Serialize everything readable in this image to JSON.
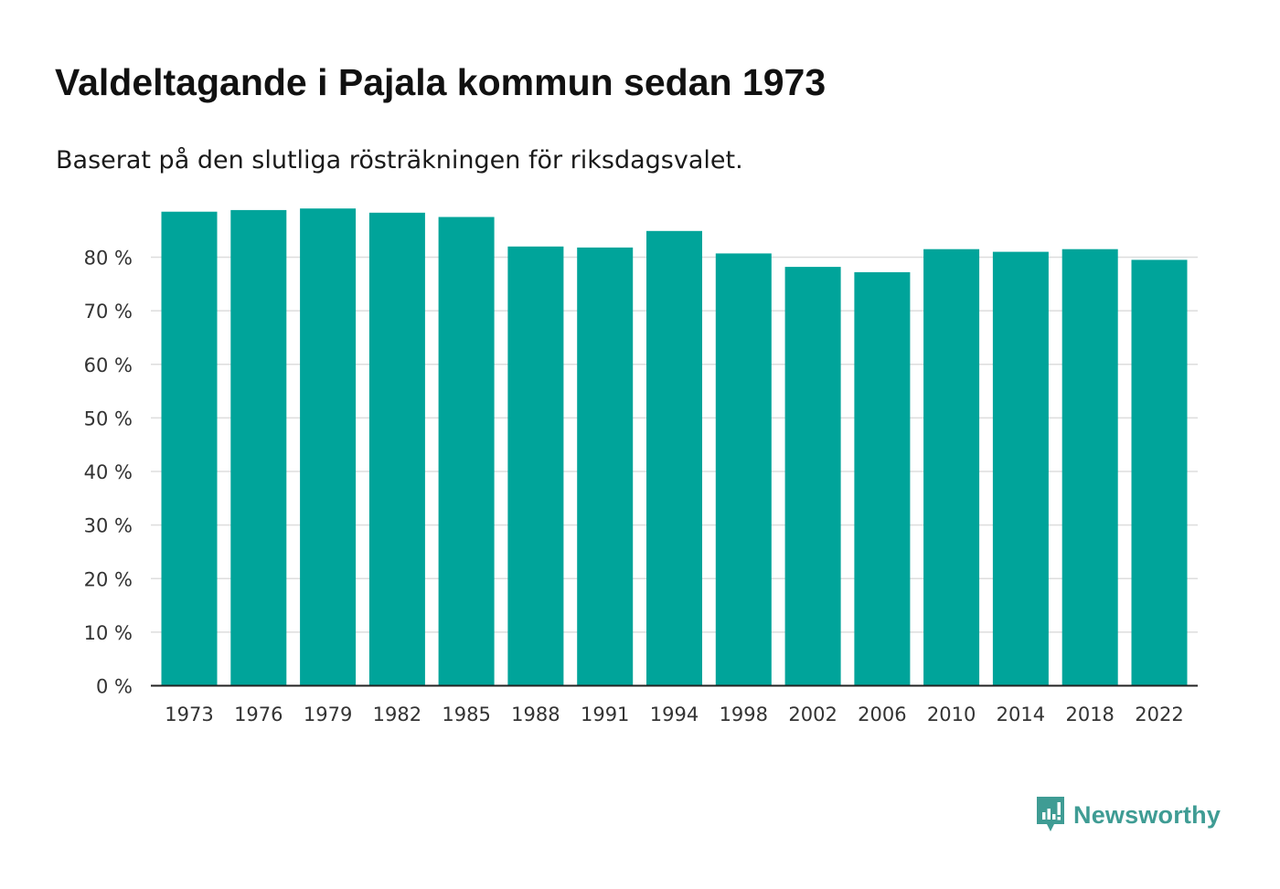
{
  "header": {
    "title": "Valdeltagande i Pajala kommun sedan 1973",
    "subtitle": "Baserat på den slutliga rösträkningen för riksdagsvalet."
  },
  "brand": {
    "name": "Newsworthy",
    "icon": "newsworthy-logo-icon",
    "color": "#3f9c94"
  },
  "colors": {
    "bar": "#00a49a",
    "grid": "#dddddd",
    "axis": "#222222"
  },
  "chart_data": {
    "type": "bar",
    "title": "Valdeltagande i Pajala kommun sedan 1973",
    "subtitle": "Baserat på den slutliga rösträkningen för riksdagsvalet.",
    "xlabel": "",
    "ylabel": "",
    "categories": [
      "1973",
      "1976",
      "1979",
      "1982",
      "1985",
      "1988",
      "1991",
      "1994",
      "1998",
      "2002",
      "2006",
      "2010",
      "2014",
      "2018",
      "2022"
    ],
    "values": [
      88.5,
      88.8,
      89.1,
      88.3,
      87.5,
      82.0,
      81.8,
      84.9,
      80.7,
      78.2,
      77.2,
      81.5,
      81.0,
      81.5,
      79.5
    ],
    "ylim": [
      0,
      90
    ],
    "yticks": [
      0,
      10,
      20,
      30,
      40,
      50,
      60,
      70,
      80
    ],
    "ytick_labels": [
      "0 %",
      "10 %",
      "20 %",
      "30 %",
      "40 %",
      "50 %",
      "60 %",
      "70 %",
      "80 %"
    ],
    "grid": true,
    "legend": "none"
  }
}
